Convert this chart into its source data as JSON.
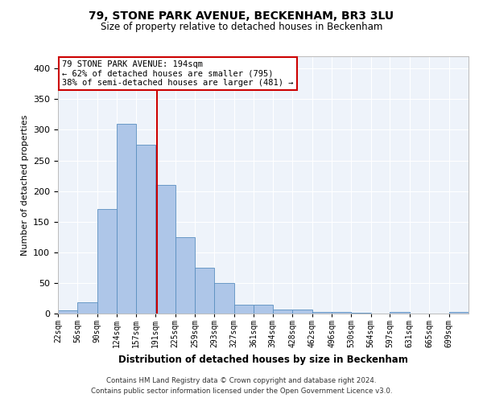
{
  "title": "79, STONE PARK AVENUE, BECKENHAM, BR3 3LU",
  "subtitle": "Size of property relative to detached houses in Beckenham",
  "xlabel": "Distribution of detached houses by size in Beckenham",
  "ylabel": "Number of detached properties",
  "bin_labels": [
    "22sqm",
    "56sqm",
    "90sqm",
    "124sqm",
    "157sqm",
    "191sqm",
    "225sqm",
    "259sqm",
    "293sqm",
    "327sqm",
    "361sqm",
    "394sqm",
    "428sqm",
    "462sqm",
    "496sqm",
    "530sqm",
    "564sqm",
    "597sqm",
    "631sqm",
    "665sqm",
    "699sqm"
  ],
  "bar_heights": [
    5,
    18,
    170,
    310,
    275,
    210,
    125,
    75,
    50,
    14,
    14,
    7,
    7,
    3,
    2,
    1,
    0,
    2,
    0,
    0,
    3
  ],
  "bar_color": "#AEC6E8",
  "bar_edge_color": "#5A8FC0",
  "vline_x": 194,
  "vline_color": "#CC0000",
  "annotation_line1": "79 STONE PARK AVENUE: 194sqm",
  "annotation_line2": "← 62% of detached houses are smaller (795)",
  "annotation_line3": "38% of semi-detached houses are larger (481) →",
  "annotation_box_color": "#FFFFFF",
  "annotation_box_edge": "#CC0000",
  "ylim": [
    0,
    420
  ],
  "yticks": [
    0,
    50,
    100,
    150,
    200,
    250,
    300,
    350,
    400
  ],
  "footer1": "Contains HM Land Registry data © Crown copyright and database right 2024.",
  "footer2": "Contains public sector information licensed under the Open Government Licence v3.0.",
  "bg_color": "#EEF3FA",
  "fig_bg_color": "#FFFFFF",
  "grid_color": "#FFFFFF",
  "bin_edges": [
    22,
    56,
    90,
    124,
    157,
    191,
    225,
    259,
    293,
    327,
    361,
    394,
    428,
    462,
    496,
    530,
    564,
    597,
    631,
    665,
    699,
    733
  ]
}
